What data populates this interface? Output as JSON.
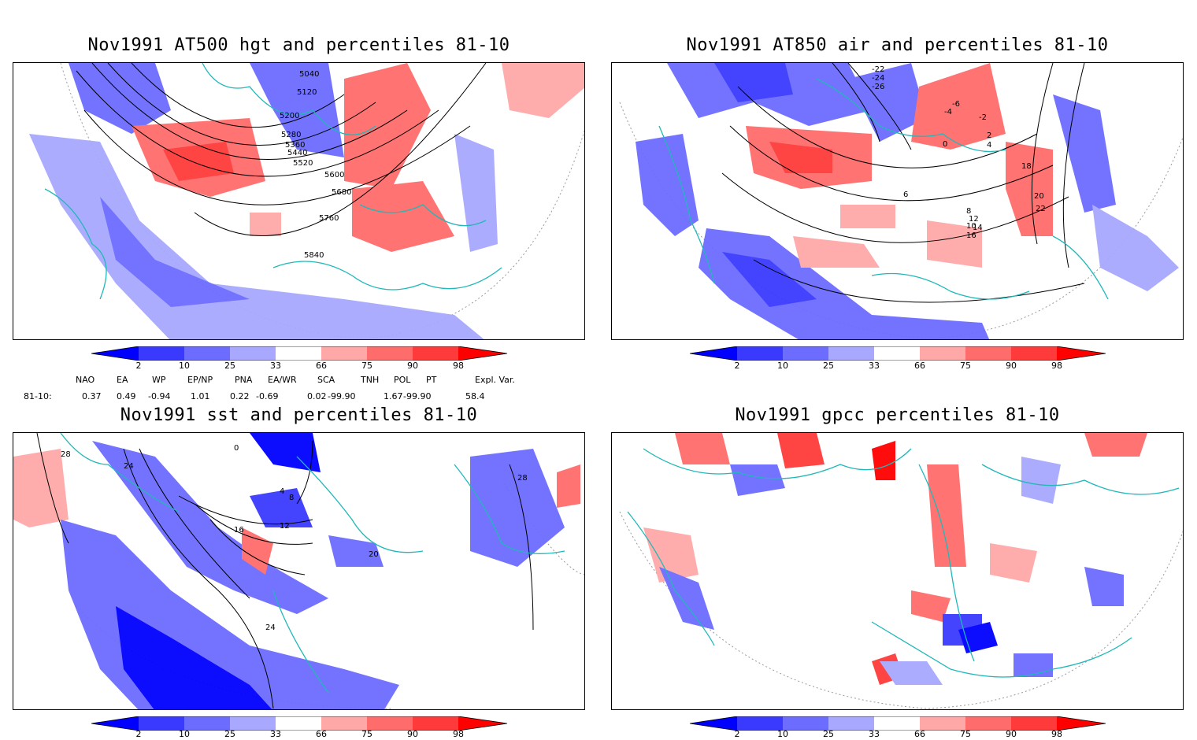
{
  "panels": [
    {
      "id": "p1",
      "title": "Nov1991 AT500 hgt and percentiles 81-10",
      "contour_labels": [
        "5040",
        "5120",
        "5200",
        "5280",
        "5360",
        "5440",
        "5520",
        "5600",
        "5680",
        "5760",
        "5840"
      ]
    },
    {
      "id": "p2",
      "title": "Nov1991 AT850 air and percentiles 81-10",
      "contour_labels": [
        "-22",
        "-24",
        "-26",
        "-6",
        "-4",
        "-2",
        "0",
        "2",
        "4",
        "6",
        "8",
        "10",
        "12",
        "14",
        "16",
        "18",
        "20",
        "22"
      ]
    },
    {
      "id": "p3",
      "title": "Nov1991 sst and percentiles 81-10",
      "contour_labels": [
        "28",
        "24",
        "0",
        "4",
        "8",
        "12",
        "16",
        "20",
        "24",
        "28"
      ]
    },
    {
      "id": "p4",
      "title": "Nov1991 gpcc percentiles 81-10",
      "contour_labels": []
    }
  ],
  "colorbar": {
    "labels": [
      "2",
      "10",
      "25",
      "33",
      "66",
      "75",
      "90",
      "98"
    ],
    "colors": {
      "dark_blue": "#0000ff",
      "blue": "#3a3aff",
      "mid_blue": "#6c6cff",
      "light_blue": "#a8a8ff",
      "light_red": "#ffa8a8",
      "mid_red": "#ff6c6c",
      "red": "#ff3a3a",
      "dark_red": "#ff0000"
    }
  },
  "teleconnections": {
    "headers": [
      "NAO",
      "EA",
      "WP",
      "EP/NP",
      "PNA",
      "EA/WR",
      "SCA",
      "TNH",
      "POL",
      "PT",
      "Expl. Var."
    ],
    "row_label": "81-10:",
    "values": [
      "0.37",
      "0.49",
      "-0.94",
      "1.01",
      "0.22",
      "-0.69",
      "0.02",
      "-99.90",
      "1.67",
      "-99.90",
      "58.4"
    ]
  },
  "colors": {
    "coast": "#20b8b8",
    "contour": "#000000"
  }
}
